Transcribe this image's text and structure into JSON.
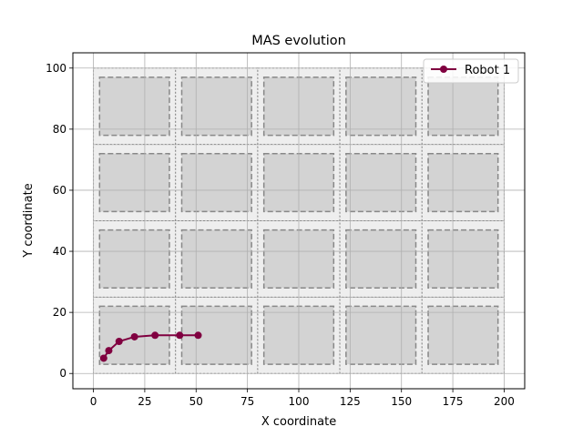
{
  "chart_data": {
    "type": "line",
    "title": "MAS evolution",
    "xlabel": "X coordinate",
    "ylabel": "Y coordinate",
    "xlim": [
      -10,
      210
    ],
    "ylim": [
      -5,
      105
    ],
    "xticks": [
      0,
      25,
      50,
      75,
      100,
      125,
      150,
      175,
      200
    ],
    "yticks": [
      0,
      20,
      40,
      60,
      80,
      100
    ],
    "grid": true,
    "legend_position": "top-right",
    "cells": {
      "columns": [
        0,
        40,
        80,
        120,
        160,
        200
      ],
      "rows": [
        0,
        25,
        50,
        75,
        100
      ],
      "inner_margin": 3,
      "cell_fill": "#eeeeee",
      "obstacle_fill": "#d3d3d3",
      "border_color": "#888888"
    },
    "series": [
      {
        "name": "Robot 1",
        "color": "#800040",
        "x": [
          5,
          7.5,
          12.5,
          20,
          30,
          42,
          51
        ],
        "y": [
          5,
          7.5,
          10.5,
          12,
          12.5,
          12.5,
          12.5
        ]
      }
    ]
  }
}
